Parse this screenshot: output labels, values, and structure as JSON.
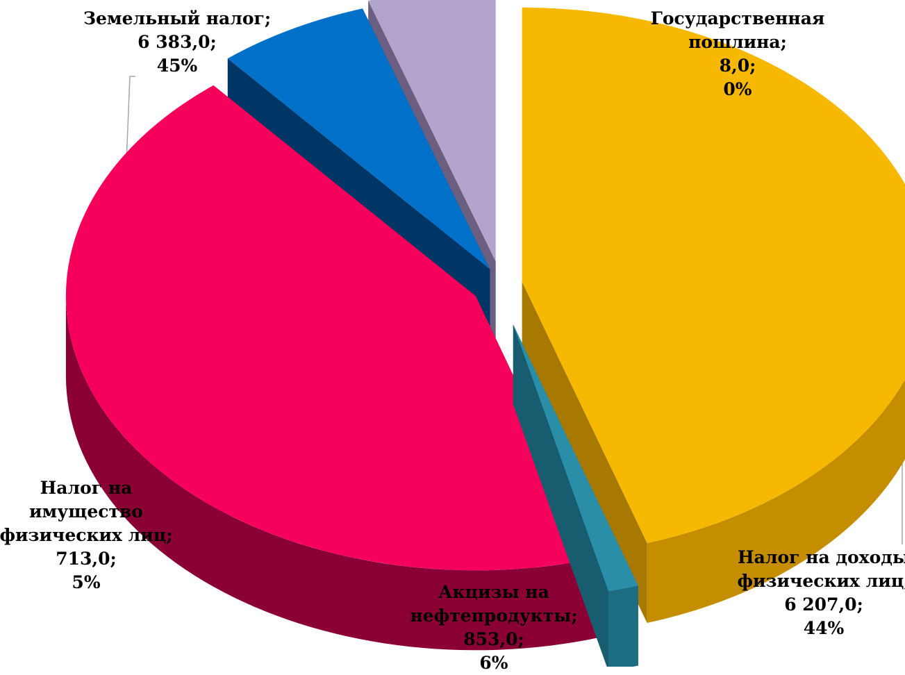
{
  "chart_data": {
    "type": "pie",
    "style": "3d-exploded",
    "legend": "none",
    "slices": [
      {
        "label_lines": [
          "Земельный налог;"
        ],
        "value_text": "6 383,0;",
        "percent_text": "45%",
        "value": 6383.0,
        "percent": 45,
        "color": "#F6B800",
        "side_color": "#C48E00"
      },
      {
        "label_lines": [
          "Государственная",
          "пошлина;"
        ],
        "value_text": "8,0;",
        "percent_text": "0%",
        "value": 8.0,
        "percent": 0,
        "color": "#2A8EA8",
        "side_color": "#1C6D82"
      },
      {
        "label_lines": [
          "Налог на доходы",
          "физических лиц;"
        ],
        "value_text": "6 207,0;",
        "percent_text": "44%",
        "value": 6207.0,
        "percent": 44,
        "color": "#F5005A",
        "side_color": "#8A0034"
      },
      {
        "label_lines": [
          "Акцизы на",
          "нефтепродукты;"
        ],
        "value_text": "853,0;",
        "percent_text": "6%",
        "value": 853.0,
        "percent": 6,
        "color": "#0070C8",
        "side_color": "#003F78"
      },
      {
        "label_lines": [
          "Налог на",
          "имущество",
          "физических лиц;"
        ],
        "value_text": "713,0;",
        "percent_text": "5%",
        "value": 713.0,
        "percent": 5,
        "color": "#B2A4CC",
        "side_color": "#7E7098"
      }
    ]
  }
}
